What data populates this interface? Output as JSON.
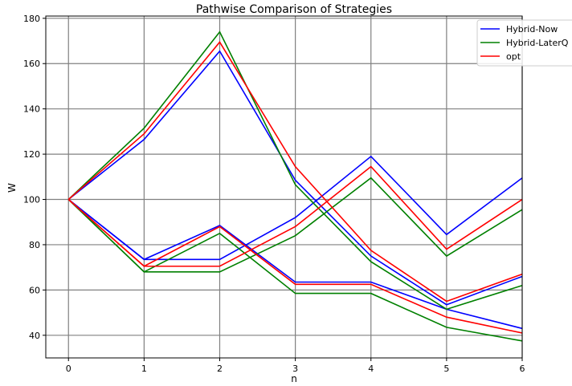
{
  "chart_data": {
    "type": "line",
    "title": "Pathwise Comparison of Strategies",
    "xlabel": "n",
    "ylabel": "W",
    "xlim": [
      -0.3,
      6
    ],
    "ylim": [
      30,
      181
    ],
    "xticks": [
      0,
      1,
      2,
      3,
      4,
      5,
      6
    ],
    "yticks": [
      40,
      60,
      80,
      100,
      120,
      140,
      160,
      180
    ],
    "grid": true,
    "legend_position": "top-right",
    "x": [
      0,
      1,
      2,
      3,
      4,
      5,
      6
    ],
    "series": [
      {
        "name": "Hybrid-Now",
        "color": "#0000ff",
        "path": 1,
        "values": [
          100,
          126.5,
          165.5,
          108.5,
          75,
          53.5,
          66
        ]
      },
      {
        "name": "Hybrid-Now",
        "color": "#0000ff",
        "path": 2,
        "values": [
          100,
          73.5,
          88.5,
          63.5,
          63.5,
          51.5,
          43
        ]
      },
      {
        "name": "Hybrid-Now",
        "color": "#0000ff",
        "path": 3,
        "values": [
          100,
          73.5,
          73.5,
          92,
          119,
          84.5,
          109.5
        ]
      },
      {
        "name": "Hybrid-LaterQ",
        "color": "#008000",
        "path": 1,
        "values": [
          100,
          131.5,
          174,
          106.5,
          72.5,
          51.5,
          62
        ]
      },
      {
        "name": "Hybrid-LaterQ",
        "color": "#008000",
        "path": 2,
        "values": [
          100,
          68,
          85,
          58.5,
          58.5,
          43.5,
          37.5
        ]
      },
      {
        "name": "Hybrid-LaterQ",
        "color": "#008000",
        "path": 3,
        "values": [
          100,
          68,
          68,
          84,
          109.5,
          75,
          95.5
        ]
      },
      {
        "name": "opt",
        "color": "#ff0000",
        "path": 1,
        "values": [
          100,
          129,
          169.5,
          114.5,
          77.5,
          55,
          67
        ]
      },
      {
        "name": "opt",
        "color": "#ff0000",
        "path": 2,
        "values": [
          100,
          70.5,
          88,
          62.5,
          62.5,
          48,
          41
        ]
      },
      {
        "name": "opt",
        "color": "#ff0000",
        "path": 3,
        "values": [
          100,
          70.5,
          70.5,
          88,
          114.5,
          78,
          100
        ]
      }
    ],
    "legend": [
      {
        "label": "Hybrid-Now",
        "color": "#0000ff"
      },
      {
        "label": "Hybrid-LaterQ",
        "color": "#008000"
      },
      {
        "label": "opt",
        "color": "#ff0000"
      }
    ]
  }
}
